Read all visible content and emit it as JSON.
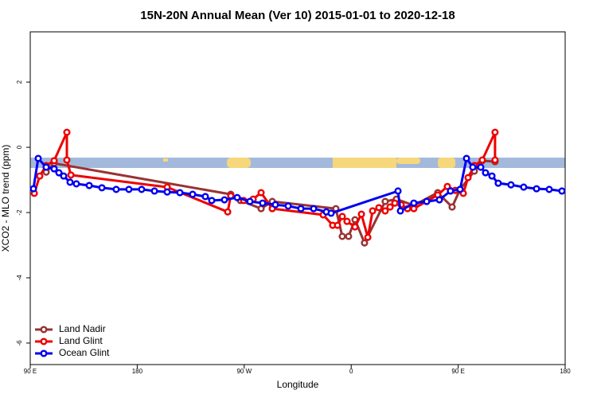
{
  "chart_data": {
    "type": "line",
    "title": "15N-20N Annual Mean (Ver 10)   2015-01-01 to 2020-12-18",
    "x_label": "Longitude",
    "y_label": "XCO2 - MLO trend (ppm)",
    "xlim": [
      90,
      540
    ],
    "ylim": [
      -6.66,
      3.54
    ],
    "xticks": [
      {
        "value": 90,
        "label": "90 E"
      },
      180,
      {
        "value": 270,
        "label": "90 W"
      },
      {
        "value": 360,
        "label": "0"
      },
      {
        "value": 450,
        "label": "90 E"
      },
      {
        "value": 540,
        "label": "180"
      }
    ],
    "yticks": [
      2,
      0,
      -2,
      -4,
      -6
    ],
    "legend": "bottom-left",
    "series": [
      {
        "name": "Land Nadir",
        "color": "#993333",
        "x": [
          103.4,
          110.1,
          258.7,
          266.8,
          284.2,
          293.6,
          347.1,
          352.5,
          357.8,
          363.2,
          371.2,
          388.6,
          398.0,
          412.7,
          432.8,
          444.9,
          451.6,
          463.6,
          470.3,
          481.0
        ],
        "values": [
          -0.76,
          -0.49,
          -1.44,
          -1.63,
          -1.88,
          -1.66,
          -1.88,
          -2.73,
          -2.73,
          -2.22,
          -2.93,
          -1.66,
          -1.59,
          -1.78,
          -1.39,
          -1.83,
          -1.29,
          -0.73,
          -0.41,
          -0.44
        ]
      },
      {
        "name": "Land Glint",
        "color": "#ee0000",
        "x": [
          93.4,
          98.0,
          103.4,
          110.1,
          120.8,
          120.8,
          124.2,
          205.2,
          256.1,
          258.7,
          269.5,
          277.5,
          284.2,
          293.6,
          336.4,
          344.4,
          348.5,
          352.5,
          356.5,
          363.2,
          368.6,
          374.0,
          378.0,
          383.3,
          388.6,
          392.7,
          396.7,
          402.0,
          407.4,
          412.7,
          432.8,
          440.9,
          447.6,
          454.3,
          458.3,
          463.6,
          470.3,
          481.0,
          481.0
        ],
        "values": [
          -1.41,
          -0.88,
          -0.56,
          -0.41,
          0.46,
          -0.39,
          -0.85,
          -1.22,
          -1.98,
          -1.49,
          -1.63,
          -1.59,
          -1.39,
          -1.88,
          -2.07,
          -2.39,
          -2.39,
          -2.12,
          -2.27,
          -2.44,
          -2.05,
          -2.76,
          -1.95,
          -1.85,
          -1.95,
          -1.83,
          -1.71,
          -1.76,
          -1.88,
          -1.88,
          -1.46,
          -1.2,
          -1.32,
          -1.41,
          -0.93,
          -0.56,
          -0.39,
          0.46,
          -0.39
        ]
      },
      {
        "name": "Ocean Glint",
        "color": "#0000ee",
        "x": [
          92.7,
          96.7,
          103.4,
          110.1,
          114.1,
          118.1,
          123.5,
          128.8,
          139.6,
          150.3,
          162.3,
          173.0,
          183.7,
          194.5,
          205.2,
          215.9,
          226.6,
          237.3,
          242.7,
          253.4,
          264.1,
          274.8,
          285.5,
          296.2,
          307.0,
          317.7,
          328.4,
          339.1,
          343.1,
          399.4,
          401.4,
          412.7,
          423.5,
          434.2,
          443.5,
          451.6,
          457.0,
          462.3,
          469.0,
          473.0,
          478.4,
          483.7,
          494.4,
          505.1,
          515.9,
          526.6,
          537.3
        ],
        "values": [
          -1.27,
          -0.34,
          -0.61,
          -0.66,
          -0.78,
          -0.88,
          -1.07,
          -1.12,
          -1.17,
          -1.24,
          -1.29,
          -1.29,
          -1.29,
          -1.34,
          -1.37,
          -1.39,
          -1.44,
          -1.51,
          -1.63,
          -1.61,
          -1.54,
          -1.66,
          -1.71,
          -1.76,
          -1.8,
          -1.88,
          -1.88,
          -1.98,
          -2.02,
          -1.34,
          -1.95,
          -1.71,
          -1.66,
          -1.61,
          -1.34,
          -1.29,
          -0.34,
          -0.61,
          -0.61,
          -0.78,
          -0.88,
          -1.1,
          -1.15,
          -1.22,
          -1.27,
          -1.29,
          -1.34
        ]
      }
    ]
  }
}
